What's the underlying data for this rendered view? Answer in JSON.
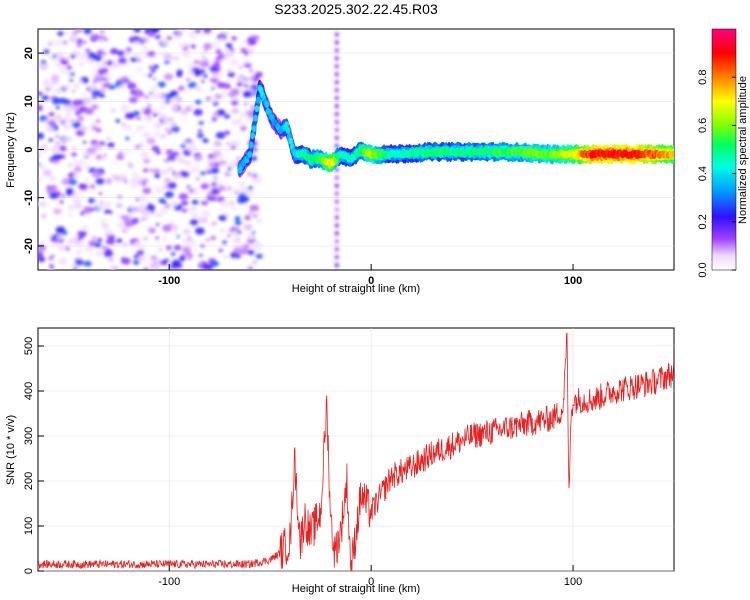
{
  "title": "S233.2025.302.22.45.R03",
  "colors": {
    "snr_line": "#e82020",
    "grid": "#d0d0d0"
  },
  "chart_data": [
    {
      "type": "heatmap",
      "xlabel": "Height of straight line (km)",
      "ylabel": "Frequency (Hz)",
      "xlim": [
        -165,
        150
      ],
      "ylim": [
        -25,
        25
      ],
      "x_ticks": [
        -100,
        0,
        100
      ],
      "y_ticks": [
        -20,
        -10,
        0,
        10,
        20
      ],
      "colorbar": {
        "label": "Normalized spectral amplitude",
        "range": [
          0,
          1
        ],
        "ticks": [
          "0.0",
          "0.2",
          "0.4",
          "0.6",
          "0.8"
        ],
        "colormap": "rainbow (white-violet-blue-cyan-green-yellow-red-magenta)"
      },
      "ridge": {
        "description": "dominant frequency trace vs height",
        "x": [
          -65,
          -60,
          -55,
          -50,
          -45,
          -42,
          -38,
          -33,
          -30,
          -25,
          -20,
          -15,
          -10,
          -5,
          0,
          10,
          30,
          50,
          70,
          90,
          100,
          110,
          130,
          150
        ],
        "y": [
          -4,
          -1,
          13,
          7,
          4,
          5,
          -1,
          -1,
          -2,
          -2,
          -3,
          -1,
          -2,
          0,
          -1,
          -1,
          -0.5,
          -0.5,
          -0.5,
          -1,
          -1,
          -1,
          -1,
          -1
        ],
        "amplitude": [
          0.35,
          0.35,
          0.4,
          0.35,
          0.35,
          0.4,
          0.4,
          0.5,
          0.5,
          0.55,
          0.75,
          0.45,
          0.45,
          0.5,
          0.65,
          0.45,
          0.5,
          0.5,
          0.55,
          0.6,
          0.7,
          0.9,
          0.9,
          0.75
        ]
      },
      "noise_region": {
        "x_range": [
          -165,
          -55
        ],
        "y_range": [
          -25,
          25
        ],
        "amplitude": 0.2
      }
    },
    {
      "type": "line",
      "xlabel": "Height of straight line (km)",
      "ylabel": "SNR (10 * v/v)",
      "xlim": [
        -165,
        150
      ],
      "ylim": [
        0,
        540
      ],
      "x_ticks": [
        -100,
        0,
        100
      ],
      "y_ticks": [
        0,
        100,
        200,
        300,
        400,
        500
      ],
      "series": [
        {
          "x": [
            -165,
            -120,
            -80,
            -60,
            -50,
            -45,
            -40,
            -38,
            -35,
            -33,
            -30,
            -25,
            -22,
            -20,
            -18,
            -15,
            -12,
            -10,
            -8,
            -5,
            0,
            10,
            20,
            30,
            40,
            50,
            60,
            70,
            80,
            90,
            95,
            97,
            98,
            99,
            100,
            110,
            120,
            130,
            140,
            150
          ],
          "y": [
            15,
            15,
            15,
            15,
            25,
            40,
            70,
            250,
            60,
            120,
            80,
            130,
            370,
            110,
            40,
            90,
            200,
            0,
            70,
            170,
            130,
            210,
            230,
            260,
            280,
            300,
            310,
            320,
            330,
            340,
            360,
            520,
            160,
            350,
            380,
            380,
            400,
            410,
            420,
            440
          ]
        }
      ]
    }
  ]
}
